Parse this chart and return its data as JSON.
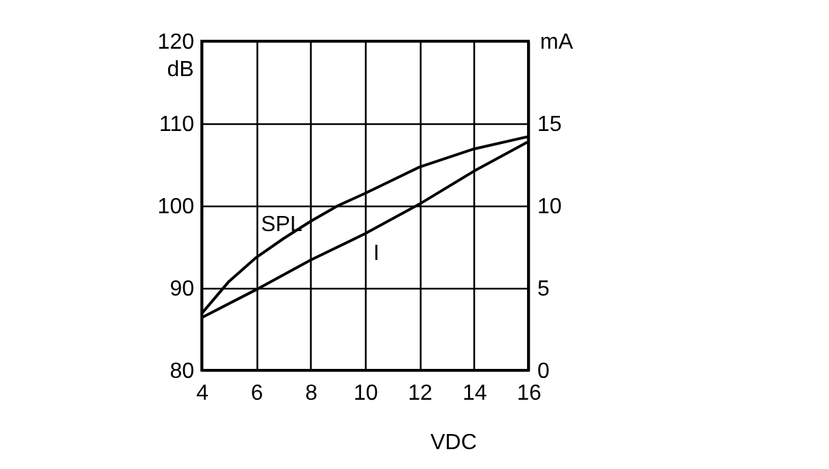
{
  "chart_data": {
    "type": "line",
    "xlabel": "VDC",
    "ylabel": "dB",
    "y2label": "mA",
    "xlim": [
      4,
      16
    ],
    "xticks": [
      4,
      6,
      8,
      10,
      12,
      14,
      16
    ],
    "ylim": [
      80,
      120
    ],
    "yticks": [
      80,
      90,
      100,
      110,
      120
    ],
    "y2lim": [
      0,
      20
    ],
    "y2ticks": [
      0,
      5,
      10,
      15
    ],
    "grid": true,
    "marker": "none",
    "line_style": "solid",
    "series": [
      {
        "name": "SPL",
        "color": "#000000",
        "x": [
          4,
          5,
          6,
          7,
          8,
          9,
          10,
          12,
          14,
          16
        ],
        "values": [
          86.9,
          90.8,
          93.7,
          96,
          98.1,
          100,
          101.5,
          104.7,
          106.9,
          108.4
        ]
      },
      {
        "name": "I",
        "color": "#000000",
        "axis": "y2",
        "x": [
          4,
          6,
          8,
          10,
          12,
          14,
          16
        ],
        "values": [
          3.2,
          4.9,
          6.7,
          8.3,
          10.1,
          12.1,
          13.9
        ]
      }
    ]
  }
}
